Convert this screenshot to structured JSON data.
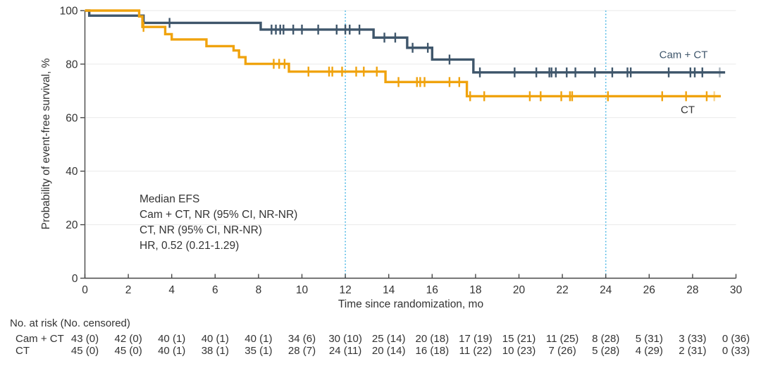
{
  "figure": {
    "annotation": {
      "line1": "Median EFS",
      "line2": "Cam + CT, NR (95% CI, NR-NR)",
      "line3": "CT, NR (95% CI, NR-NR)",
      "line4": "HR, 0.52 (0.21-1.29)"
    },
    "risk_table": {
      "header": "No. at risk (No. censored)",
      "rows": [
        {
          "label": "Cam + CT",
          "values": [
            "43 (0)",
            "42 (0)",
            "40 (1)",
            "40 (1)",
            "40 (1)",
            "34 (6)",
            "30 (10)",
            "25 (14)",
            "20 (18)",
            "17 (19)",
            "15 (21)",
            "11 (25)",
            "8 (28)",
            "5 (31)",
            "3 (33)",
            "0 (36)"
          ]
        },
        {
          "label": "CT",
          "values": [
            "45 (0)",
            "45 (0)",
            "40 (1)",
            "38 (1)",
            "35 (1)",
            "28 (7)",
            "24 (11)",
            "20 (14)",
            "16 (18)",
            "11 (22)",
            "10 (23)",
            "7 (26)",
            "5 (28)",
            "4 (29)",
            "2 (31)",
            "0 (33)"
          ]
        }
      ]
    }
  },
  "chart_data": {
    "type": "line",
    "subtype": "kaplan-meier-step",
    "title": "",
    "xlabel": "Time since randomization, mo",
    "ylabel": "Probability of event-free survival, %",
    "xlim": [
      0,
      30
    ],
    "ylim": [
      0,
      100
    ],
    "x_ticks": [
      0,
      2,
      4,
      6,
      8,
      10,
      12,
      14,
      16,
      18,
      20,
      22,
      24,
      26,
      28,
      30
    ],
    "y_ticks": [
      0,
      20,
      40,
      60,
      80,
      100
    ],
    "grid": true,
    "grid_color": "#e9e9e9",
    "axis_color": "#474747",
    "reference_lines_x": [
      12,
      24
    ],
    "reference_line_color": "#50b9e6",
    "series": [
      {
        "name": "Cam + CT",
        "color": "#3f566b",
        "steps": [
          [
            0,
            100
          ],
          [
            0.2,
            98.1
          ],
          [
            2.7,
            95.4
          ],
          [
            8.1,
            92.9
          ],
          [
            13.3,
            89.9
          ],
          [
            14.85,
            86.1
          ],
          [
            16.0,
            81.7
          ],
          [
            17.9,
            76.9
          ]
        ],
        "end_x": 29.5,
        "censors": [
          [
            3.9,
            95.4
          ],
          [
            8.6,
            92.9
          ],
          [
            8.8,
            92.9
          ],
          [
            9.0,
            92.9
          ],
          [
            9.15,
            92.9
          ],
          [
            9.6,
            92.9
          ],
          [
            10.0,
            92.9
          ],
          [
            10.75,
            92.9
          ],
          [
            11.6,
            92.9
          ],
          [
            12.0,
            92.9
          ],
          [
            12.2,
            92.9
          ],
          [
            12.65,
            92.9
          ],
          [
            13.8,
            89.9
          ],
          [
            14.3,
            89.9
          ],
          [
            15.1,
            86.1
          ],
          [
            15.8,
            86.1
          ],
          [
            16.8,
            81.7
          ],
          [
            18.2,
            76.9
          ],
          [
            19.8,
            76.9
          ],
          [
            20.8,
            76.9
          ],
          [
            21.4,
            76.9
          ],
          [
            21.5,
            76.9
          ],
          [
            21.7,
            76.9
          ],
          [
            22.2,
            76.9
          ],
          [
            22.6,
            76.9
          ],
          [
            23.5,
            76.9
          ],
          [
            24.3,
            76.9
          ],
          [
            25.0,
            76.9
          ],
          [
            25.15,
            76.9
          ],
          [
            26.9,
            76.9
          ],
          [
            27.9,
            76.9
          ],
          [
            28.1,
            76.9
          ],
          [
            28.45,
            76.9
          ],
          [
            29.25,
            76.9
          ]
        ],
        "label_x": 27.6,
        "label_y": 83.4
      },
      {
        "name": "CT",
        "color": "#f0a30e",
        "steps": [
          [
            0,
            100
          ],
          [
            2.5,
            97.8
          ],
          [
            2.65,
            93.9
          ],
          [
            3.7,
            91.2
          ],
          [
            4.0,
            89.2
          ],
          [
            5.6,
            86.7
          ],
          [
            6.85,
            85.1
          ],
          [
            7.1,
            82.6
          ],
          [
            7.4,
            80.1
          ],
          [
            9.4,
            77.2
          ],
          [
            13.85,
            73.3
          ],
          [
            17.6,
            68.0
          ]
        ],
        "end_x": 29.3,
        "censors": [
          [
            2.7,
            93.9
          ],
          [
            8.7,
            80.1
          ],
          [
            8.95,
            80.1
          ],
          [
            9.2,
            80.1
          ],
          [
            10.3,
            77.2
          ],
          [
            11.25,
            77.2
          ],
          [
            11.4,
            77.2
          ],
          [
            11.85,
            77.2
          ],
          [
            12.5,
            77.2
          ],
          [
            12.85,
            77.2
          ],
          [
            13.45,
            77.2
          ],
          [
            14.45,
            73.3
          ],
          [
            15.3,
            73.3
          ],
          [
            15.45,
            73.3
          ],
          [
            15.65,
            73.3
          ],
          [
            16.8,
            73.3
          ],
          [
            17.25,
            73.3
          ],
          [
            17.75,
            68.0
          ],
          [
            18.4,
            68.0
          ],
          [
            20.5,
            68.0
          ],
          [
            21.0,
            68.0
          ],
          [
            21.95,
            68.0
          ],
          [
            22.35,
            68.0
          ],
          [
            22.45,
            68.0
          ],
          [
            24.1,
            68.0
          ],
          [
            26.6,
            68.0
          ],
          [
            27.7,
            68.0
          ],
          [
            28.65,
            68.0
          ],
          [
            29.0,
            68.0
          ]
        ],
        "label_x": 27.8,
        "label_y": 62.8
      }
    ]
  }
}
